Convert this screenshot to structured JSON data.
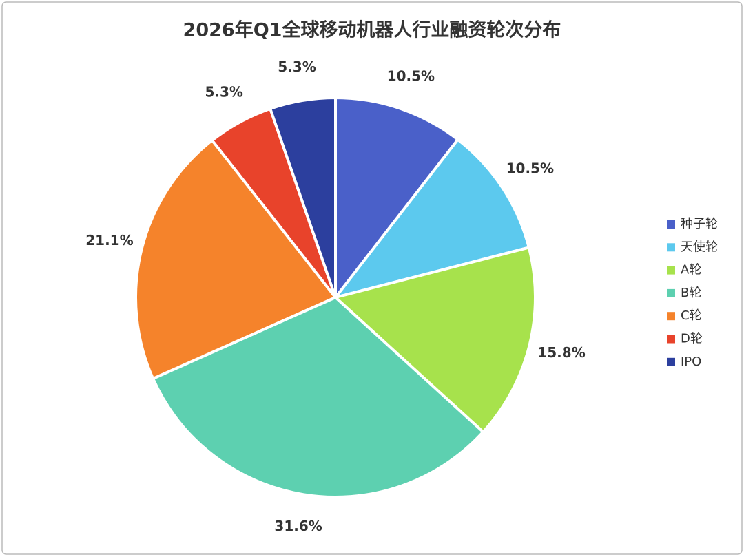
{
  "chart_data": {
    "type": "pie",
    "title": "2026年Q1全球移动机器人行业融资轮次分布",
    "categories": [
      "种子轮",
      "天使轮",
      "A轮",
      "B轮",
      "C轮",
      "D轮",
      "IPO"
    ],
    "values": [
      10.5,
      10.5,
      15.8,
      31.6,
      21.1,
      5.3,
      5.3
    ],
    "value_labels": [
      "10.5%",
      "10.5%",
      "15.8%",
      "31.6%",
      "21.1%",
      "5.3%",
      "5.3%"
    ],
    "colors": [
      "#4a60c9",
      "#5cc9ee",
      "#a7e24c",
      "#5dd0b0",
      "#f5832b",
      "#e8432b",
      "#2c3f9e"
    ],
    "legend": "right"
  }
}
